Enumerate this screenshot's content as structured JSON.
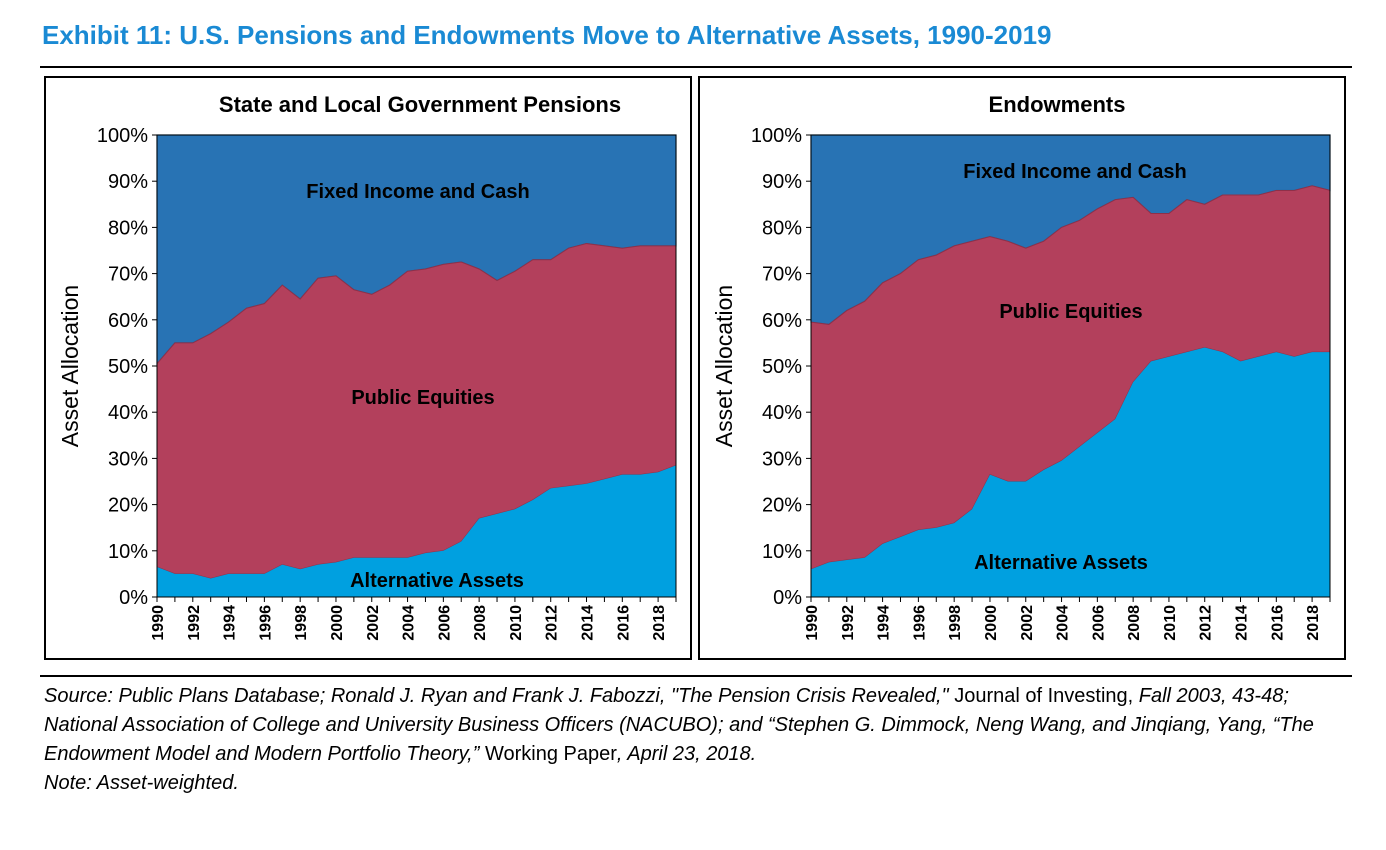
{
  "page": {
    "title": "Exhibit 11: U.S. Pensions and Endowments Move to Alternative Assets, 1990-2019",
    "source": {
      "part1": "Source: Public Plans Database; Ronald J. Ryan and Frank J. Fabozzi, \"The Pension Crisis Revealed,\" ",
      "journal": "Journal of",
      "part2": "Investing,",
      "part3": " Fall 2003, 43-48; National Association of College and University Business Officers (NACUBO); and “Stephen G. Dimmock, Neng Wang, and Jinqiang, Yang, “The Endowment Model and Modern Portfolio Theory,” ",
      "wp": "Working Paper",
      "part4": ", April 23, 2018.",
      "note": "Note: Asset-weighted."
    }
  },
  "colors": {
    "fixed_income": "#2873b4",
    "public_equities": "#b3405c",
    "alternative_assets": "#00a0e0",
    "title": "#1a8ad4"
  },
  "chart_data": [
    {
      "type": "area",
      "stacked": true,
      "title": "State and Local Government Pensions",
      "ylabel": "Asset Allocation",
      "xlabel": "",
      "ylim": [
        0,
        100
      ],
      "yticks": [
        "0%",
        "10%",
        "20%",
        "30%",
        "40%",
        "50%",
        "60%",
        "70%",
        "80%",
        "90%",
        "100%"
      ],
      "xticks": [
        "1990",
        "1992",
        "1994",
        "1996",
        "1998",
        "2000",
        "2002",
        "2004",
        "2006",
        "2008",
        "2010",
        "2012",
        "2014",
        "2016",
        "2018"
      ],
      "x": [
        1990,
        1991,
        1992,
        1993,
        1994,
        1995,
        1996,
        1997,
        1998,
        1999,
        2000,
        2001,
        2002,
        2003,
        2004,
        2005,
        2006,
        2007,
        2008,
        2009,
        2010,
        2011,
        2012,
        2013,
        2014,
        2015,
        2016,
        2017,
        2018,
        2019
      ],
      "series": [
        {
          "name": "Alternative Assets",
          "values": [
            6.5,
            5,
            5,
            4,
            5,
            5,
            5,
            7,
            6,
            7,
            7.5,
            8.5,
            8.5,
            8.5,
            8.5,
            9.5,
            10,
            12,
            17,
            18,
            19,
            21,
            23.5,
            24,
            24.5,
            25.5,
            26.5,
            26.5,
            27,
            28.5
          ]
        },
        {
          "name": "Public Equities",
          "values": [
            44,
            50,
            50,
            53,
            54.5,
            57.5,
            58.5,
            60.5,
            58.5,
            62,
            62,
            58,
            57,
            59,
            62,
            61.5,
            62,
            60.5,
            54,
            50.5,
            51.5,
            52,
            49.5,
            51.5,
            52,
            50.5,
            49,
            49.5,
            49,
            47.5
          ]
        },
        {
          "name": "Fixed Income and Cash",
          "values": [
            49.5,
            45,
            45,
            43,
            40.5,
            37.5,
            36.5,
            32.5,
            35.5,
            31,
            30.5,
            33.5,
            34.5,
            32.5,
            29.5,
            29,
            28,
            27.5,
            29,
            31.5,
            29.5,
            27,
            27,
            24.5,
            23.5,
            24,
            24.5,
            24,
            24,
            24
          ]
        }
      ],
      "labels": {
        "fixed_income": "Fixed Income and Cash",
        "public_equities": "Public Equities",
        "alternative_assets": "Alternative Assets"
      }
    },
    {
      "type": "area",
      "stacked": true,
      "title": "Endowments",
      "ylabel": "Asset Allocation",
      "xlabel": "",
      "ylim": [
        0,
        100
      ],
      "yticks": [
        "0%",
        "10%",
        "20%",
        "30%",
        "40%",
        "50%",
        "60%",
        "70%",
        "80%",
        "90%",
        "100%"
      ],
      "xticks": [
        "1990",
        "1992",
        "1994",
        "1996",
        "1998",
        "2000",
        "2002",
        "2004",
        "2006",
        "2008",
        "2010",
        "2012",
        "2014",
        "2016",
        "2018"
      ],
      "x": [
        1990,
        1991,
        1992,
        1993,
        1994,
        1995,
        1996,
        1997,
        1998,
        1999,
        2000,
        2001,
        2002,
        2003,
        2004,
        2005,
        2006,
        2007,
        2008,
        2009,
        2010,
        2011,
        2012,
        2013,
        2014,
        2015,
        2016,
        2017,
        2018,
        2019
      ],
      "series": [
        {
          "name": "Alternative Assets",
          "values": [
            6,
            7.5,
            8,
            8.5,
            11.5,
            13,
            14.5,
            15,
            16,
            19,
            26.5,
            25,
            25,
            27.5,
            29.5,
            32.5,
            35.5,
            38.5,
            46.5,
            51,
            52,
            53,
            54,
            53,
            51,
            52,
            53,
            52,
            53,
            53
          ]
        },
        {
          "name": "Public Equities",
          "values": [
            53.5,
            51.5,
            54,
            55.5,
            56.5,
            57,
            58.5,
            59,
            60,
            58,
            51.5,
            52,
            50.5,
            49.5,
            50.5,
            49,
            48.5,
            47.5,
            40,
            32,
            31,
            33,
            31,
            34,
            36,
            35,
            35,
            36,
            36,
            35
          ]
        },
        {
          "name": "Fixed Income and Cash",
          "values": [
            40.5,
            41,
            38,
            36,
            32,
            30,
            27,
            26,
            24,
            23,
            22,
            23,
            24.5,
            23,
            20,
            18.5,
            16,
            14,
            13.5,
            17,
            17,
            14,
            15,
            13,
            13,
            13,
            12,
            12,
            11,
            12
          ]
        }
      ],
      "labels": {
        "fixed_income": "Fixed Income and Cash",
        "public_equities": "Public Equities",
        "alternative_assets": "Alternative Assets"
      }
    }
  ]
}
